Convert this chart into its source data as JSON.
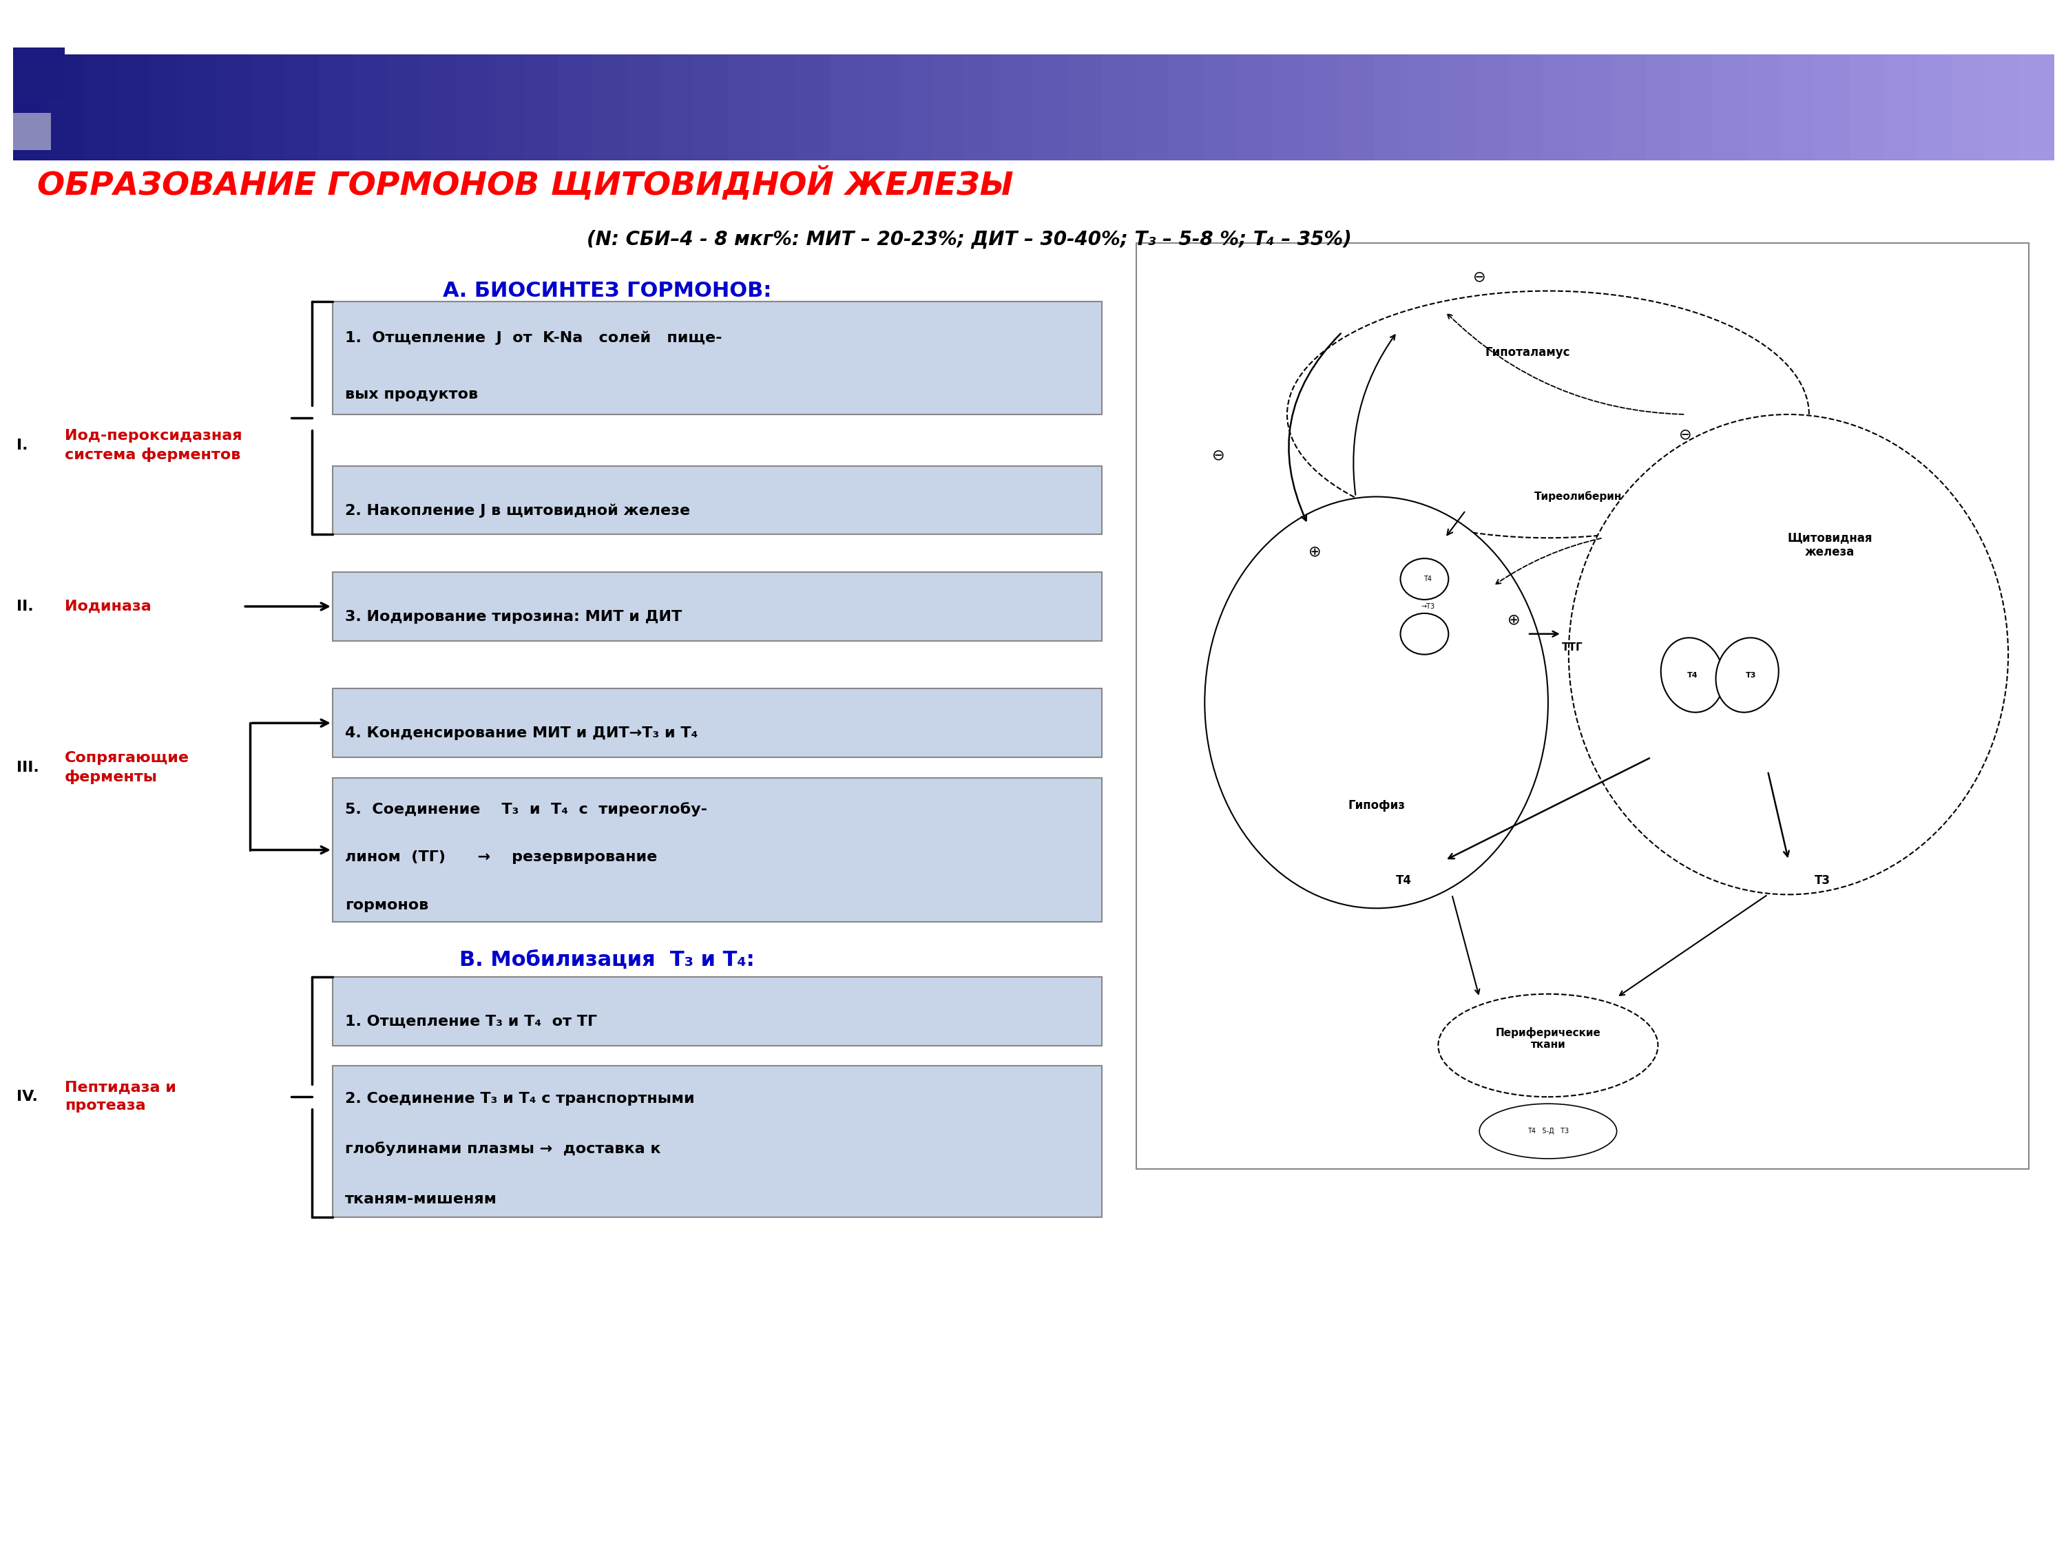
{
  "title_main": "ОБРАЗОВАНИЕ ГОРМОНОВ ЩИТОВИДНОЙ ЖЕЛЕЗЫ",
  "title_sub": "(N: СБИ–4 - 8 мкг%: МИТ – 20-23%; ДИТ – 30-40%; Т₃ – 5-8 %; Т₄ – 35%)",
  "section_a": "А. БИОСИНТЕЗ ГОРМОНОВ:",
  "section_b": "В. Мобилизация  Т₃ и Т₄:",
  "box1_line1": "1.  Отщепление  J  от  K-Na   солей   пище-",
  "box1_line2": "вых продуктов",
  "box2": "2. Накопление J в щитовидной железе",
  "box3": "3. Иодирование тирозина: МИТ и ДИТ",
  "box4": "4. Конденсирование МИТ и ДИТ→Т₃ и Т₄",
  "box5_line1": "5.  Соединение    Т₃  и  Т₄  с  тиреоглобу-",
  "box5_line2": "лином  (ТГ)      →    резервирование",
  "box5_line3": "гормонов",
  "box6": "1. Отщепление Т₃ и Т₄  от ТГ",
  "box7_line1": "2. Соединение Т₃ и Т₄ с транспортными",
  "box7_line2": "глобулинами плазмы →  доставка к",
  "box7_line3": "тканям-мишеням",
  "bg_color": "#ffffff",
  "box_bg": "#c8d4e8",
  "box_edge": "#7f7f7f",
  "title_color": "#ff0000",
  "sub_color": "#000000",
  "section_a_color": "#0000cd",
  "section_b_color": "#0000cd",
  "label_roman_color": "#000000",
  "label_red_color": "#cc0000",
  "header_dark": "#1a1a7f",
  "header_light": "#9999cc"
}
